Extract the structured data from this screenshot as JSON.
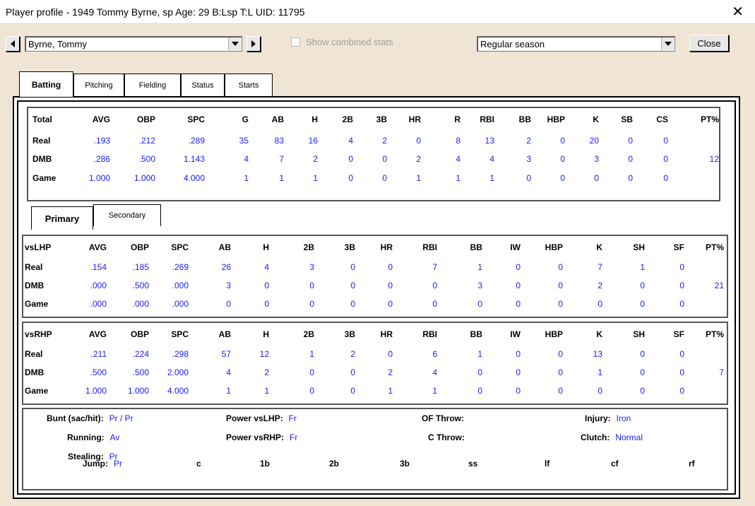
{
  "window": {
    "title": "Player profile - 1949 Tommy Byrne, sp  Age: 29  B:Lsp T:L  UID: 11795"
  },
  "toolbar": {
    "player_name": "Byrne, Tommy",
    "show_combined_label": "Show combined stats",
    "season_value": "Regular season",
    "close_label": "Close"
  },
  "tabs": [
    "Batting",
    "Pitching",
    "Fielding",
    "Status",
    "Starts"
  ],
  "total": {
    "headers": [
      "Total",
      "AVG",
      "OBP",
      "SPC",
      "G",
      "AB",
      "H",
      "2B",
      "3B",
      "HR",
      "R",
      "RBI",
      "BB",
      "HBP",
      "K",
      "SB",
      "CS",
      "PT%"
    ],
    "rows": [
      {
        "label": "Real",
        "values": [
          ".193",
          ".212",
          ".289",
          "35",
          "83",
          "16",
          "4",
          "2",
          "0",
          "8",
          "13",
          "2",
          "0",
          "20",
          "0",
          "0",
          ""
        ]
      },
      {
        "label": "DMB",
        "values": [
          ".286",
          ".500",
          "1.143",
          "4",
          "7",
          "2",
          "0",
          "0",
          "2",
          "4",
          "4",
          "3",
          "0",
          "3",
          "0",
          "0",
          "12"
        ]
      },
      {
        "label": "Game",
        "values": [
          "1.000",
          "1.000",
          "4.000",
          "1",
          "1",
          "1",
          "0",
          "0",
          "1",
          "1",
          "1",
          "0",
          "0",
          "0",
          "0",
          "0",
          ""
        ]
      }
    ]
  },
  "subtabs": [
    "Primary",
    "Secondary"
  ],
  "vslhp": {
    "headers": [
      "vsLHP",
      "AVG",
      "OBP",
      "SPC",
      "AB",
      "H",
      "2B",
      "3B",
      "HR",
      "RBI",
      "BB",
      "IW",
      "HBP",
      "K",
      "SH",
      "SF",
      "PT%"
    ],
    "rows": [
      {
        "label": "Real",
        "values": [
          ".154",
          ".185",
          ".269",
          "26",
          "4",
          "3",
          "0",
          "0",
          "7",
          "1",
          "0",
          "0",
          "7",
          "1",
          "0",
          ""
        ]
      },
      {
        "label": "DMB",
        "values": [
          ".000",
          ".500",
          ".000",
          "3",
          "0",
          "0",
          "0",
          "0",
          "0",
          "3",
          "0",
          "0",
          "2",
          "0",
          "0",
          "21"
        ]
      },
      {
        "label": "Game",
        "values": [
          ".000",
          ".000",
          ".000",
          "0",
          "0",
          "0",
          "0",
          "0",
          "0",
          "0",
          "0",
          "0",
          "0",
          "0",
          "0",
          ""
        ]
      }
    ]
  },
  "vsrhp": {
    "headers": [
      "vsRHP",
      "AVG",
      "OBP",
      "SPC",
      "AB",
      "H",
      "2B",
      "3B",
      "HR",
      "RBI",
      "BB",
      "IW",
      "HBP",
      "K",
      "SH",
      "SF",
      "PT%"
    ],
    "rows": [
      {
        "label": "Real",
        "values": [
          ".211",
          ".224",
          ".298",
          "57",
          "12",
          "1",
          "2",
          "0",
          "6",
          "1",
          "0",
          "0",
          "13",
          "0",
          "0",
          ""
        ]
      },
      {
        "label": "DMB",
        "values": [
          ".500",
          ".500",
          "2.000",
          "4",
          "2",
          "0",
          "0",
          "2",
          "4",
          "0",
          "0",
          "0",
          "1",
          "0",
          "0",
          "7"
        ]
      },
      {
        "label": "Game",
        "values": [
          "1.000",
          "1.000",
          "4.000",
          "1",
          "1",
          "0",
          "0",
          "1",
          "1",
          "0",
          "0",
          "0",
          "0",
          "0",
          "0",
          ""
        ]
      }
    ]
  },
  "attributes": {
    "bunt_label": "Bunt (sac/hit):",
    "bunt_value": "Pr / Pr",
    "running_label": "Running:",
    "running_value": "Av",
    "stealing_label": "Stealing:",
    "stealing_value": "Pr",
    "jump_label": "Jump:",
    "jump_value": "Pr",
    "power_lhp_label": "Power vsLHP:",
    "power_lhp_value": "Fr",
    "power_rhp_label": "Power vsRHP:",
    "power_rhp_value": "Fr",
    "of_throw_label": "OF Throw:",
    "of_throw_value": "",
    "c_throw_label": "C Throw:",
    "c_throw_value": "",
    "injury_label": "Injury:",
    "injury_value": "Iron",
    "clutch_label": "Clutch:",
    "clutch_value": "Normal",
    "positions": [
      "c",
      "1b",
      "2b",
      "3b",
      "ss",
      "lf",
      "cf",
      "rf"
    ]
  }
}
